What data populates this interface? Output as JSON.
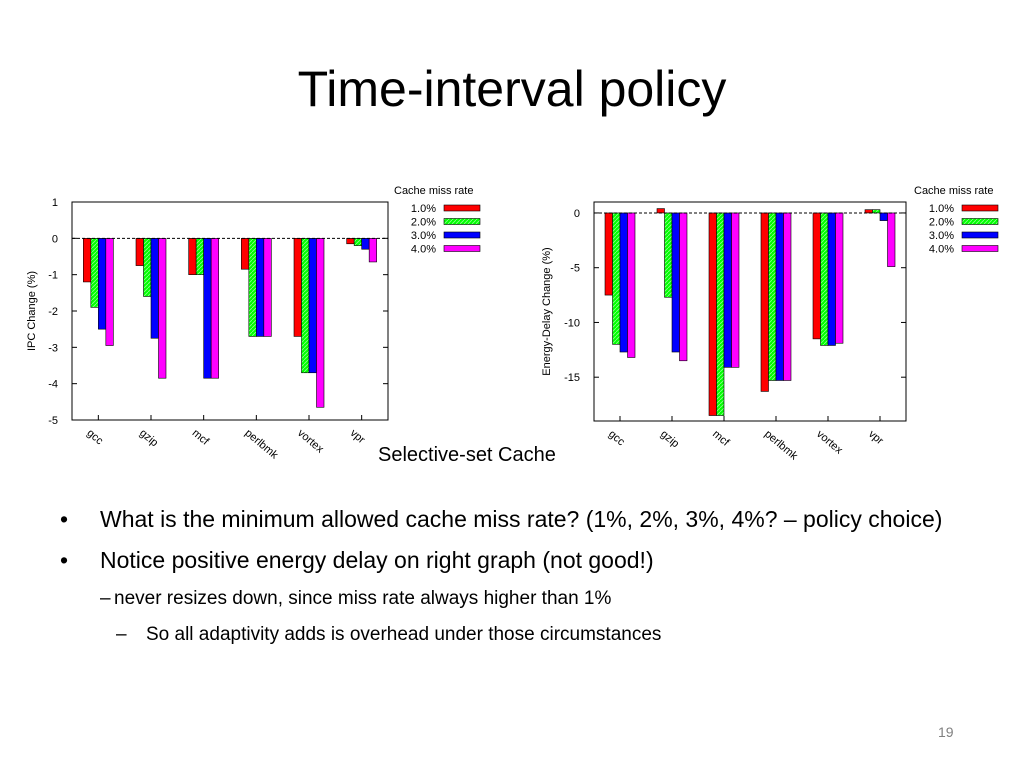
{
  "slide": {
    "title": "Time-interval policy",
    "caption": "Selective-set Cache",
    "bullets": [
      "What is the minimum allowed cache miss rate? (1%, 2%, 3%, 4%? – policy choice)",
      "Notice positive energy delay on right graph (not good!)"
    ],
    "sub_bullets": [
      {
        "marker": "–",
        "text": "never resizes down, since miss rate always higher than 1%"
      },
      {
        "marker": "–",
        "text": "So all adaptivity adds is overhead under those circumstances"
      }
    ],
    "bullet_marker": "•",
    "page_number": "19"
  },
  "chart_data": [
    {
      "type": "bar",
      "ylabel": "IPC Change (%)",
      "ylim": [
        -5,
        1
      ],
      "yticks": [
        1,
        0,
        -1,
        -2,
        -3,
        -4,
        -5
      ],
      "categories": [
        "gcc",
        "gzip",
        "mcf",
        "perlbmk",
        "vortex",
        "vpr"
      ],
      "legend_title": "Cache miss rate",
      "legend_position": "top-right",
      "reference_line": 0,
      "series": [
        {
          "name": "1.0%",
          "color": "#ff0000",
          "values": [
            -1.2,
            -0.75,
            -1.0,
            -0.85,
            -2.7,
            -0.15
          ]
        },
        {
          "name": "2.0%",
          "color": "#00ff00",
          "values": [
            -1.9,
            -1.6,
            -1.0,
            -2.7,
            -3.7,
            -0.2
          ]
        },
        {
          "name": "3.0%",
          "color": "#0000ff",
          "values": [
            -2.5,
            -2.75,
            -3.85,
            -2.7,
            -3.7,
            -0.3
          ]
        },
        {
          "name": "4.0%",
          "color": "#ff00ff",
          "values": [
            -2.95,
            -3.85,
            -3.85,
            -2.7,
            -4.65,
            -0.65
          ]
        }
      ]
    },
    {
      "type": "bar",
      "ylabel": "Energy-Delay Change (%)",
      "ylim": [
        -19,
        1
      ],
      "yticks": [
        0,
        -5,
        -10,
        -15
      ],
      "categories": [
        "gcc",
        "gzip",
        "mcf",
        "perlbmk",
        "vortex",
        "vpr"
      ],
      "legend_title": "Cache miss rate",
      "legend_position": "top-right",
      "reference_line": 0,
      "series": [
        {
          "name": "1.0%",
          "color": "#ff0000",
          "values": [
            -7.5,
            0.4,
            -18.5,
            -16.3,
            -11.5,
            0.3
          ]
        },
        {
          "name": "2.0%",
          "color": "#00ff00",
          "values": [
            -12.0,
            -7.7,
            -18.5,
            -15.3,
            -12.1,
            0.3
          ]
        },
        {
          "name": "3.0%",
          "color": "#0000ff",
          "values": [
            -12.7,
            -12.7,
            -14.1,
            -15.3,
            -12.1,
            -0.7
          ]
        },
        {
          "name": "4.0%",
          "color": "#ff00ff",
          "values": [
            -13.2,
            -13.5,
            -14.1,
            -15.3,
            -11.9,
            -4.9
          ]
        }
      ]
    }
  ]
}
